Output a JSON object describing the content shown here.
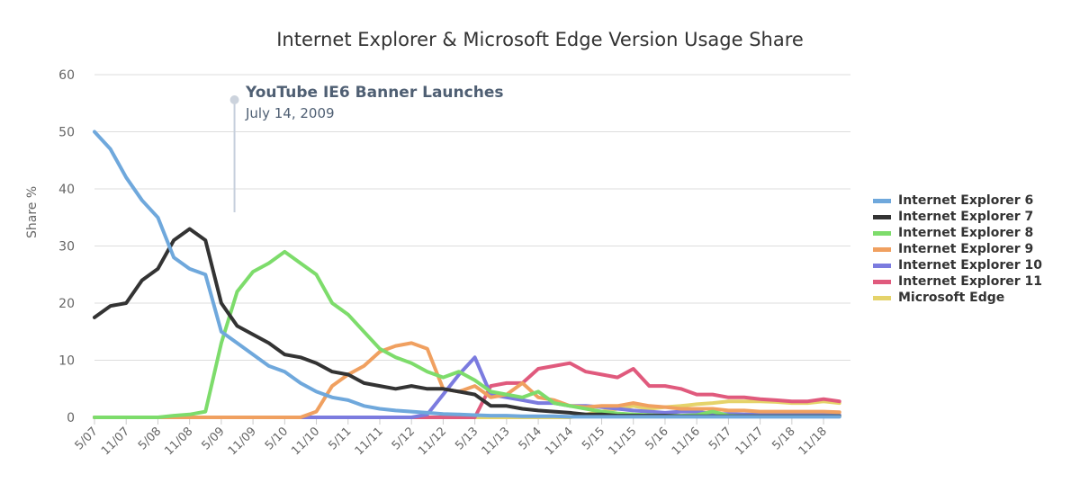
{
  "chart_data": {
    "type": "line",
    "title": "Internet Explorer & Microsoft Edge Version Usage Share",
    "xlabel": "",
    "ylabel": "Share %",
    "ylim": [
      0,
      60
    ],
    "yticks": [
      0,
      10,
      20,
      30,
      40,
      50,
      60
    ],
    "xtick_labels": [
      "5/07",
      "11/07",
      "5/08",
      "11/08",
      "5/09",
      "11/09",
      "5/10",
      "11/10",
      "5/11",
      "11/11",
      "5/12",
      "11/12",
      "5/13",
      "11/13",
      "5/14",
      "11/14",
      "5/15",
      "11/15",
      "5/16",
      "11/16",
      "5/17",
      "11/17",
      "5/18",
      "11/18"
    ],
    "grid": true,
    "legend_position": "right",
    "x_months_from_may_2007": [
      0,
      3,
      6,
      9,
      12,
      15,
      18,
      21,
      24,
      27,
      30,
      33,
      36,
      39,
      42,
      45,
      48,
      51,
      54,
      57,
      60,
      63,
      66,
      69,
      72,
      75,
      78,
      81,
      84,
      87,
      90,
      93,
      96,
      99,
      102,
      105,
      108,
      111,
      114,
      117,
      120,
      123,
      126,
      129,
      132,
      135,
      138,
      141
    ],
    "series": [
      {
        "name": "Internet Explorer 6",
        "color": "#6fa8dc",
        "values": [
          50,
          47,
          42,
          38,
          35,
          28,
          26,
          25,
          15,
          13,
          11,
          9,
          8,
          6,
          4.5,
          3.5,
          3,
          2,
          1.5,
          1.2,
          1,
          0.8,
          0.6,
          0.5,
          0.4,
          0.3,
          0.3,
          0.2,
          0.2,
          0.2,
          0.1,
          0.1,
          0.1,
          0.1,
          0.1,
          0.1,
          0.1,
          0.1,
          0.1,
          0.1,
          0.1,
          0.1,
          0.1,
          0.1,
          0.1,
          0.1,
          0.1,
          0.1
        ]
      },
      {
        "name": "Internet Explorer 7",
        "color": "#333333",
        "values": [
          17.5,
          19.5,
          20,
          24,
          26,
          31,
          33,
          31,
          20,
          16,
          14.5,
          13,
          11,
          10.5,
          9.5,
          8,
          7.5,
          6,
          5.5,
          5,
          5.5,
          5,
          5,
          4.5,
          4,
          2,
          2,
          1.5,
          1.2,
          1,
          0.8,
          0.5,
          0.5,
          0.3,
          0.3,
          0.3,
          0.3,
          0.2,
          0.2,
          0.2,
          0.2,
          0.2,
          0.2,
          0.2,
          0.2,
          0.2,
          0.2,
          0.2
        ]
      },
      {
        "name": "Internet Explorer 8",
        "color": "#7ddc6b",
        "values": [
          0,
          0,
          0,
          0,
          0,
          0.3,
          0.5,
          1,
          13,
          22,
          25.5,
          27,
          29,
          27,
          25,
          20,
          18,
          15,
          12,
          10.5,
          9.5,
          8,
          7,
          8,
          6.5,
          4.5,
          4,
          3.5,
          4.5,
          2.5,
          2,
          1.5,
          1,
          0.7,
          0.5,
          0.4,
          0.3,
          0.3,
          0.4,
          1,
          0.3,
          0.2,
          0.2,
          0.2,
          0.2,
          0.2,
          0.2,
          0.2
        ]
      },
      {
        "name": "Internet Explorer 9",
        "color": "#f0a060",
        "values": [
          0,
          0,
          0,
          0,
          0,
          0,
          0,
          0,
          0,
          0,
          0,
          0,
          0,
          0,
          1,
          5.5,
          7.5,
          9,
          11.5,
          12.5,
          13,
          12,
          5,
          4.5,
          5.5,
          3.5,
          4,
          6,
          3.5,
          3,
          2,
          1.8,
          2,
          2,
          2.5,
          2,
          1.8,
          1.5,
          1.5,
          1.5,
          1.2,
          1.2,
          1,
          1,
          1,
          1,
          1,
          0.9
        ]
      },
      {
        "name": "Internet Explorer 10",
        "color": "#7b7bdf",
        "values": [
          0,
          0,
          0,
          0,
          0,
          0,
          0,
          0,
          0,
          0,
          0,
          0,
          0,
          0,
          0,
          0,
          0,
          0,
          0,
          0,
          0,
          0.5,
          4,
          7.5,
          10.5,
          4,
          3.5,
          3,
          2.5,
          2.5,
          2,
          2,
          1.8,
          1.5,
          1.2,
          1,
          0.8,
          1,
          1,
          0.6,
          0.6,
          0.5,
          0.5,
          0.5,
          0.5,
          0.5,
          0.5,
          0.4
        ]
      },
      {
        "name": "Internet Explorer 11",
        "color": "#e05a7d",
        "values": [
          0,
          0,
          0,
          0,
          0,
          0,
          0,
          0,
          0,
          0,
          0,
          0,
          0,
          0,
          0,
          0,
          0,
          0,
          0,
          0,
          0,
          0,
          0,
          0,
          0,
          5.5,
          6,
          6,
          8.5,
          9,
          9.5,
          8,
          7.5,
          7,
          8.5,
          5.5,
          5.5,
          5,
          4,
          4,
          3.5,
          3.5,
          3.2,
          3,
          2.8,
          2.8,
          3.2,
          2.8
        ]
      },
      {
        "name": "Microsoft Edge",
        "color": "#e5d36a",
        "values": [
          0,
          0,
          0,
          0,
          0,
          0,
          0,
          0,
          0,
          0,
          0,
          0,
          0,
          0,
          0,
          0,
          0,
          0,
          0,
          0,
          0,
          0,
          0,
          0,
          0,
          0,
          0,
          0,
          0,
          0,
          0,
          0.5,
          1,
          1.5,
          2,
          1.5,
          1.8,
          2,
          2.3,
          2.5,
          2.8,
          2.8,
          2.8,
          2.7,
          2.5,
          2.5,
          2.8,
          2.5
        ]
      }
    ],
    "annotations": [
      {
        "title": "YouTube IE6 Banner Launches",
        "date": "July 14, 2009"
      }
    ]
  }
}
